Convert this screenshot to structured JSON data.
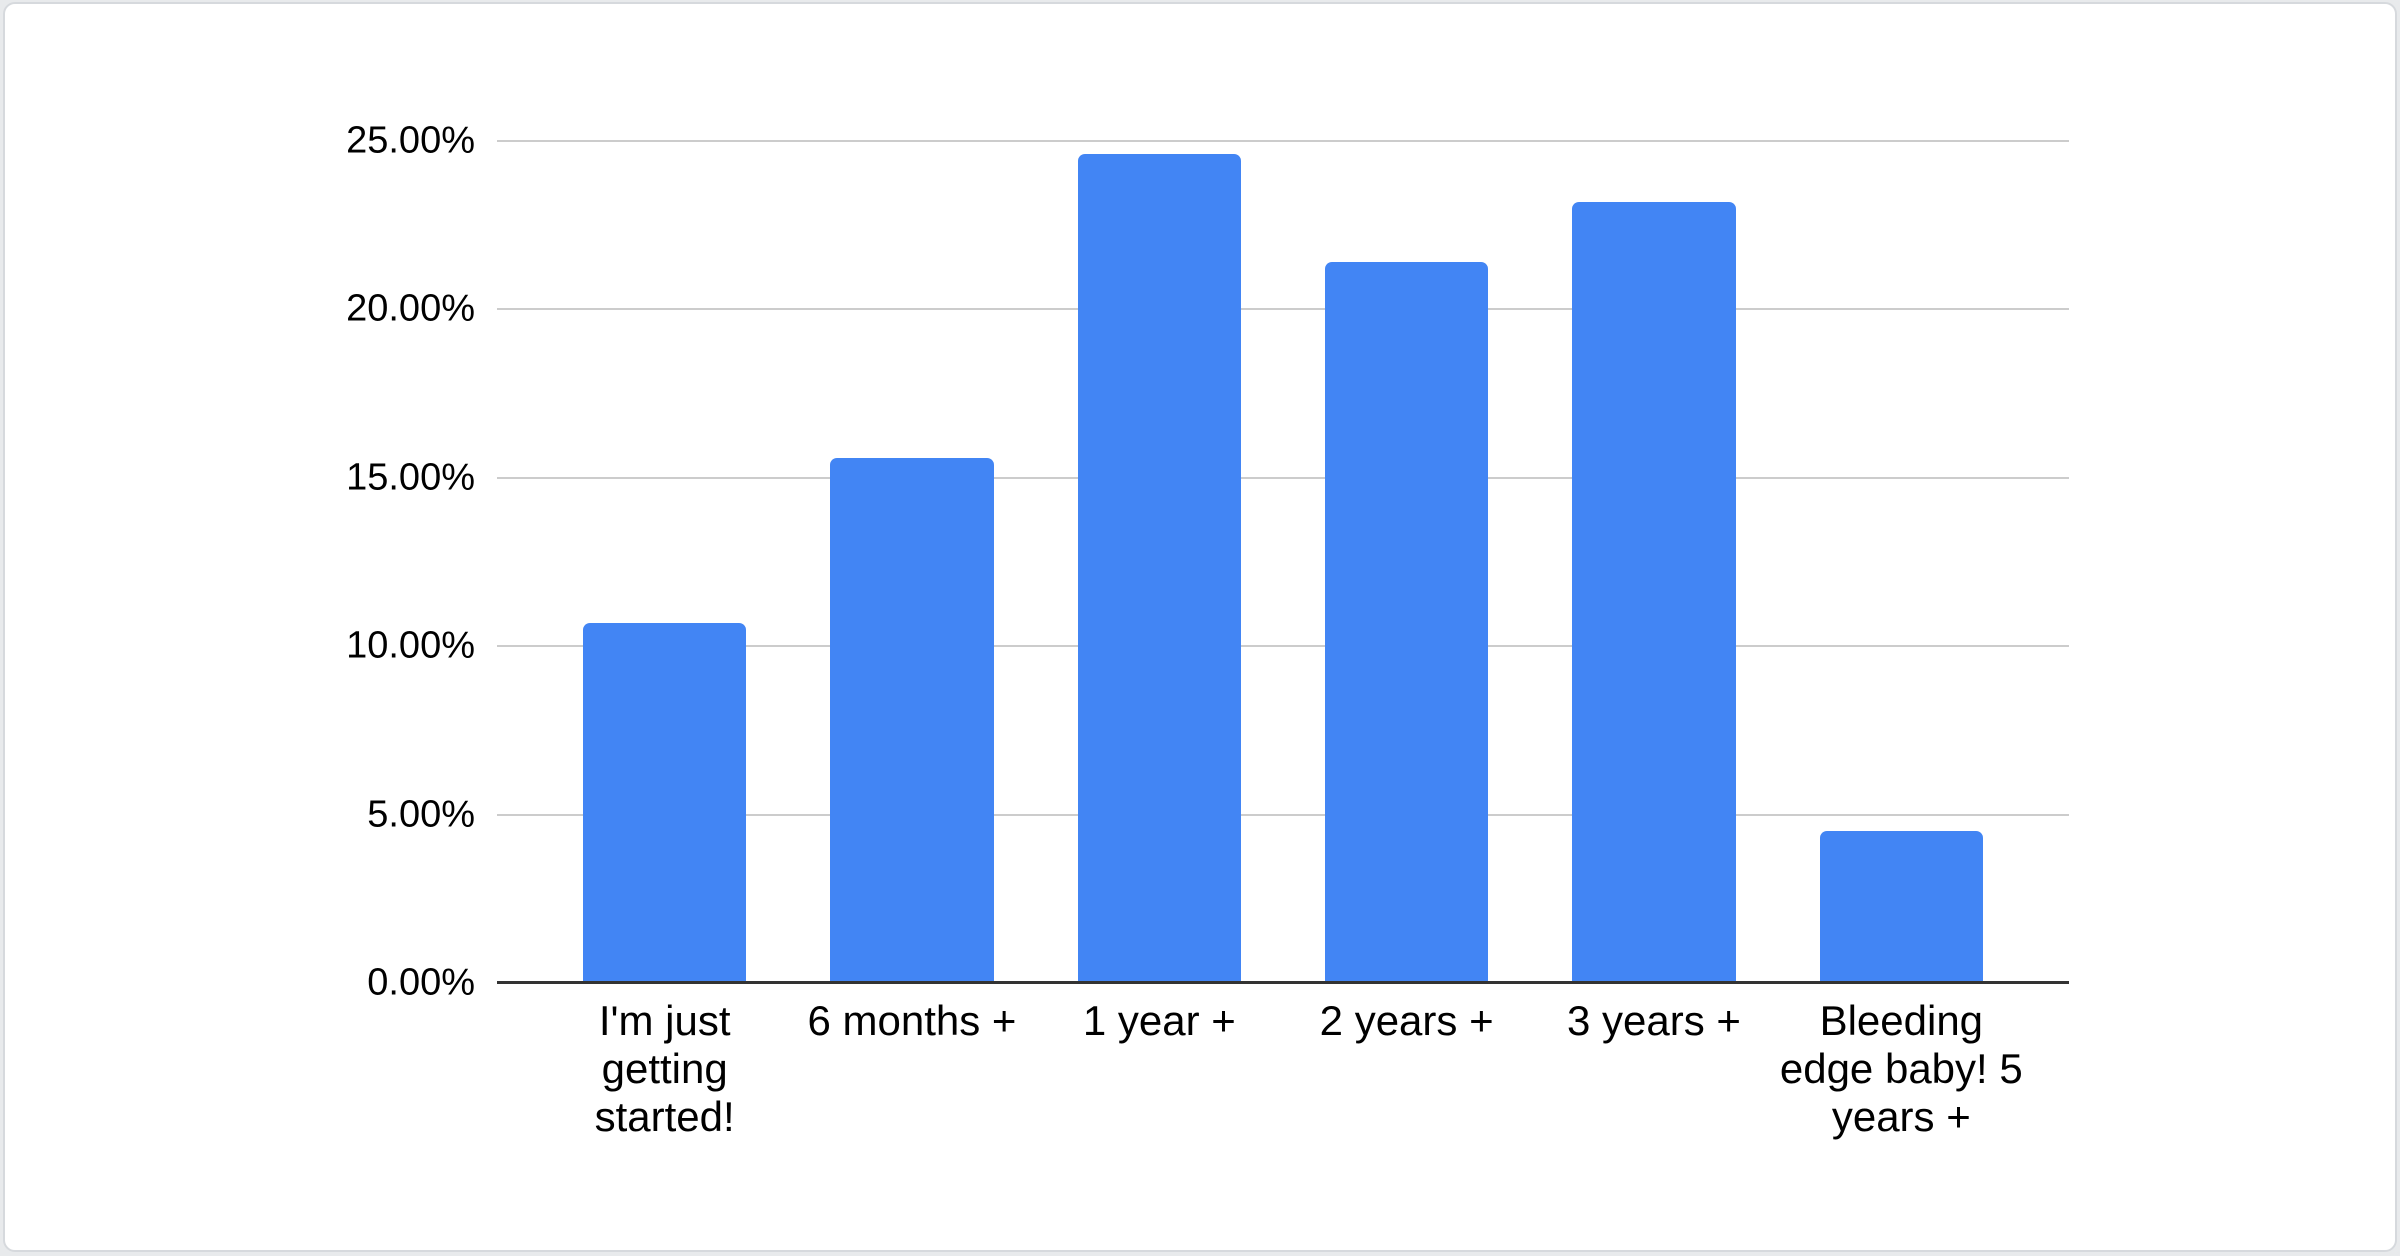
{
  "page": {
    "background_color": "#e8eaec",
    "card_background_color": "#ffffff",
    "card_border_color": "#d6d9dd"
  },
  "chart_data": {
    "type": "bar",
    "title": "",
    "xlabel": "",
    "ylabel": "",
    "categories": [
      "I'm just getting started!",
      "6 months +",
      "1 year +",
      "2 years +",
      "3 years +",
      "Bleeding edge baby! 5 years +"
    ],
    "values": [
      10.7,
      15.6,
      24.6,
      21.4,
      23.2,
      4.5
    ],
    "unit": "%",
    "ylim": [
      0,
      25
    ],
    "y_ticks": [
      {
        "label": "25.00%",
        "value": 25
      },
      {
        "label": "20.00%",
        "value": 20
      },
      {
        "label": "15.00%",
        "value": 15
      },
      {
        "label": "10.00%",
        "value": 10
      },
      {
        "label": "5.00%",
        "value": 5
      },
      {
        "label": "0.00%",
        "value": 0
      }
    ],
    "grid": "horizontal",
    "legend": "none",
    "bar_color": "#4285f4",
    "grid_color": "#cccccc",
    "axis_color": "#333333",
    "label_color": "#000000"
  }
}
